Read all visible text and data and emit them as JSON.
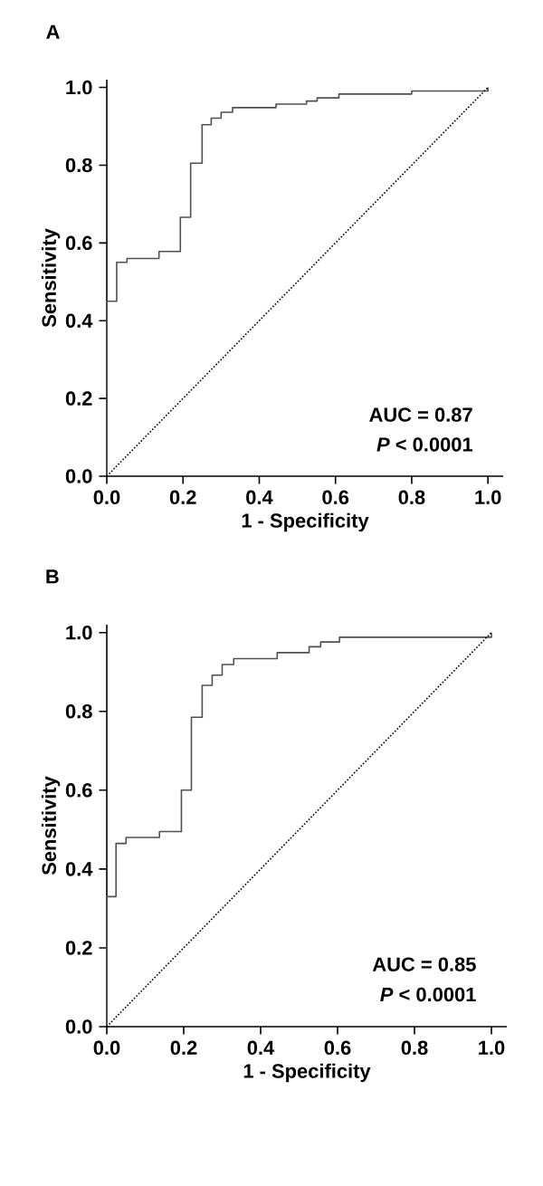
{
  "chart_data": [
    {
      "type": "line",
      "title": "A",
      "xlabel": "1 - Specificity",
      "ylabel": "Sensitivity",
      "xlim": [
        0,
        1.04
      ],
      "ylim": [
        0,
        1.02
      ],
      "xticks": [
        {
          "value": 0,
          "label": "0.0"
        },
        {
          "value": 0.2,
          "label": "0.2"
        },
        {
          "value": 0.4,
          "label": "0.4"
        },
        {
          "value": 0.6,
          "label": "0.6"
        },
        {
          "value": 0.8,
          "label": "0.8"
        },
        {
          "value": 1,
          "label": "1.0"
        }
      ],
      "yticks": [
        {
          "value": 0,
          "label": "0.0"
        },
        {
          "value": 0.2,
          "label": "0.2"
        },
        {
          "value": 0.4,
          "label": "0.4"
        },
        {
          "value": 0.6,
          "label": "0.6"
        },
        {
          "value": 0.8,
          "label": "0.8"
        },
        {
          "value": 1,
          "label": "1.0"
        }
      ],
      "annotations": [
        "AUC = 0.87",
        "*P* < 0.0001"
      ],
      "series": [
        {
          "color": "#505050",
          "line_style": "solid",
          "x": [
            0,
            0,
            0.026,
            0.026,
            0.053,
            0.053,
            0.137,
            0.137,
            0.193,
            0.193,
            0.22,
            0.22,
            0.25,
            0.25,
            0.274,
            0.274,
            0.3,
            0.3,
            0.33,
            0.33,
            0.444,
            0.444,
            0.524,
            0.524,
            0.552,
            0.552,
            0.609,
            0.609,
            0.8,
            0.8,
            1,
            1
          ],
          "values": [
            0,
            0.45,
            0.45,
            0.55,
            0.55,
            0.56,
            0.56,
            0.578,
            0.578,
            0.666,
            0.666,
            0.805,
            0.805,
            0.904,
            0.904,
            0.921,
            0.921,
            0.936,
            0.936,
            0.948,
            0.948,
            0.957,
            0.957,
            0.965,
            0.965,
            0.973,
            0.973,
            0.983,
            0.983,
            0.991,
            0.991,
            1
          ]
        },
        {
          "color": "#000000",
          "line_style": "dotted",
          "x": [
            0,
            1
          ],
          "values": [
            0,
            1
          ]
        }
      ]
    },
    {
      "type": "line",
      "title": "B",
      "xlabel": "1 - Specificity",
      "ylabel": "Sensitivity",
      "xlim": [
        0,
        1.04
      ],
      "ylim": [
        0,
        1.02
      ],
      "xticks": [
        {
          "value": 0,
          "label": "0.0"
        },
        {
          "value": 0.2,
          "label": "0.2"
        },
        {
          "value": 0.4,
          "label": "0.4"
        },
        {
          "value": 0.6,
          "label": "0.6"
        },
        {
          "value": 0.8,
          "label": "0.8"
        },
        {
          "value": 1,
          "label": "1.0"
        }
      ],
      "yticks": [
        {
          "value": 0,
          "label": "0.0"
        },
        {
          "value": 0.2,
          "label": "0.2"
        },
        {
          "value": 0.4,
          "label": "0.4"
        },
        {
          "value": 0.6,
          "label": "0.6"
        },
        {
          "value": 0.8,
          "label": "0.8"
        },
        {
          "value": 1,
          "label": "1.0"
        }
      ],
      "annotations": [
        "AUC = 0.85",
        "*P* < 0.0001"
      ],
      "series": [
        {
          "color": "#505050",
          "line_style": "solid",
          "x": [
            0,
            0,
            0.024,
            0.024,
            0.05,
            0.05,
            0.137,
            0.137,
            0.194,
            0.194,
            0.22,
            0.22,
            0.248,
            0.248,
            0.274,
            0.274,
            0.3,
            0.3,
            0.33,
            0.33,
            0.443,
            0.443,
            0.526,
            0.526,
            0.556,
            0.556,
            0.605,
            0.605,
            1,
            1
          ],
          "values": [
            0,
            0.33,
            0.33,
            0.465,
            0.465,
            0.48,
            0.48,
            0.495,
            0.495,
            0.6,
            0.6,
            0.785,
            0.785,
            0.866,
            0.866,
            0.892,
            0.892,
            0.919,
            0.919,
            0.934,
            0.934,
            0.949,
            0.949,
            0.964,
            0.964,
            0.976,
            0.976,
            0.988,
            0.988,
            1
          ]
        },
        {
          "color": "#000000",
          "line_style": "dotted",
          "x": [
            0,
            1
          ],
          "values": [
            0,
            1
          ]
        }
      ]
    }
  ]
}
